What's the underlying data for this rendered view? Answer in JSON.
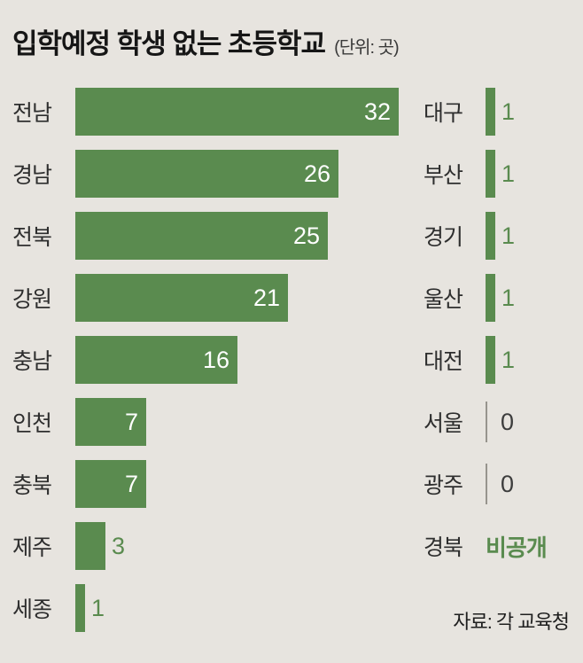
{
  "colors": {
    "bar_green": "#5a8b4f",
    "background": "#e7e4df",
    "title_text": "#161616",
    "label_text": "#2e2e2e",
    "zero_text": "#3d3d3d",
    "tick_line": "#97948d",
    "bar_number_white": "#ffffff"
  },
  "chart_data": {
    "type": "bar",
    "orientation": "horizontal",
    "title": "입학예정 학생 없는 초등학교",
    "unit_label": "(단위: 곳)",
    "source": "자료: 각 교육청",
    "xlim": [
      0,
      32
    ],
    "grid": false,
    "legend": false,
    "left": {
      "categories": [
        "전남",
        "경남",
        "전북",
        "강원",
        "충남",
        "인천",
        "충북",
        "제주",
        "세종"
      ],
      "values": [
        32,
        26,
        25,
        21,
        16,
        7,
        7,
        3,
        1
      ]
    },
    "right": {
      "categories": [
        "대구",
        "부산",
        "경기",
        "울산",
        "대전",
        "서울",
        "광주",
        "경북"
      ],
      "values": [
        1,
        1,
        1,
        1,
        1,
        0,
        0,
        "비공개"
      ]
    }
  }
}
